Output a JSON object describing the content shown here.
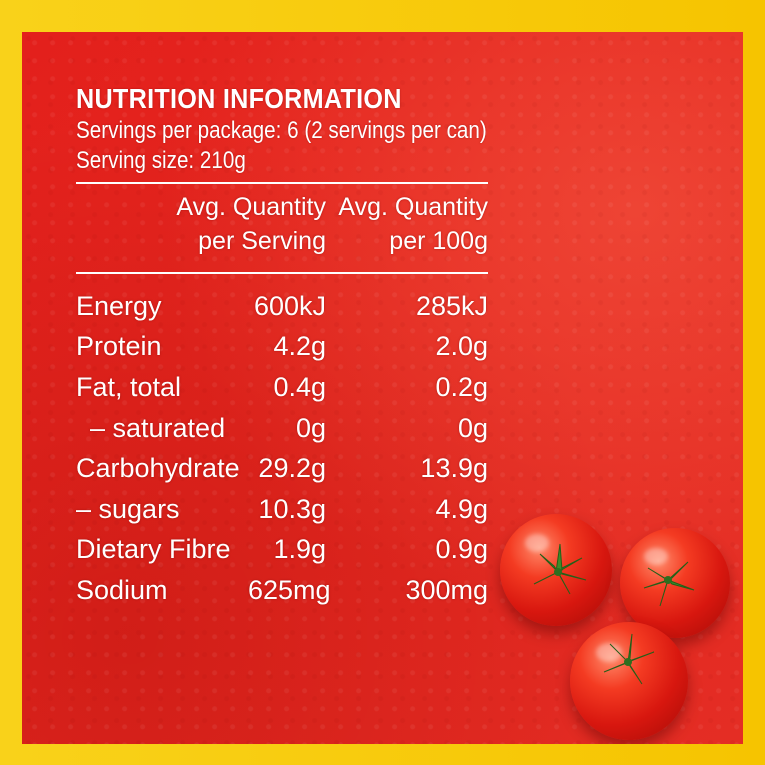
{
  "nutrition": {
    "title": "NUTRITION INFORMATION",
    "servings_per_package": "Servings per package: 6 (2 servings per can)",
    "serving_size": "Serving size: 210g",
    "columns": [
      {
        "line1": "Avg. Quantity",
        "line2": "per Serving"
      },
      {
        "line1": "Avg. Quantity",
        "line2": "per 100g"
      }
    ],
    "rows": [
      {
        "label": "Energy",
        "per_serving": "600kJ",
        "per_100g": "285kJ"
      },
      {
        "label": "Protein",
        "per_serving": "4.2g",
        "per_100g": "2.0g"
      },
      {
        "label": "Fat, total",
        "per_serving": "0.4g",
        "per_100g": "0.2g"
      },
      {
        "label": "– saturated",
        "per_serving": "0g",
        "per_100g": "0g"
      },
      {
        "label": "Carbohydrate",
        "per_serving": "29.2g",
        "per_100g": "13.9g"
      },
      {
        "label": "– sugars",
        "per_serving": "10.3g",
        "per_100g": "4.9g"
      },
      {
        "label": "Dietary Fibre",
        "per_serving": "1.9g",
        "per_100g": "0.9g"
      },
      {
        "label": "Sodium",
        "per_serving": "625mg",
        "per_100g": "300mg"
      }
    ]
  },
  "colors": {
    "border": "#f7c600",
    "panel": "#e3201c",
    "text": "#ffffff"
  },
  "decorations": {
    "image_subject": "cherry-tomatoes"
  }
}
